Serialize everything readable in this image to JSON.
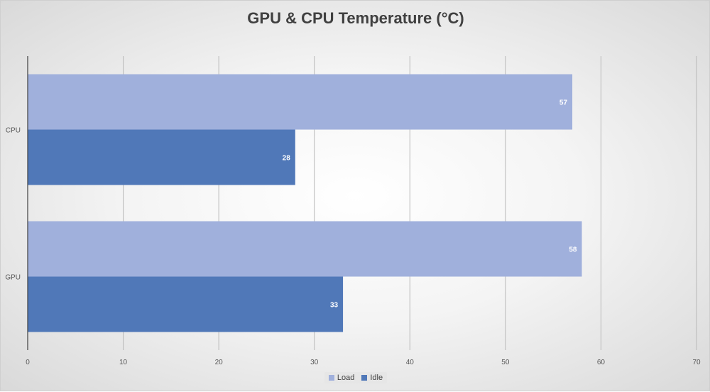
{
  "chart_data": {
    "type": "bar",
    "orientation": "horizontal",
    "title": "GPU & CPU Temperature (°C)",
    "categories": [
      "CPU",
      "GPU"
    ],
    "series": [
      {
        "name": "Load",
        "values": [
          57,
          58
        ],
        "color": "#a0b0dc"
      },
      {
        "name": "Idle",
        "values": [
          28,
          33
        ],
        "color": "#5078b8"
      }
    ],
    "xlim": [
      0,
      70
    ],
    "xticks": [
      0,
      10,
      20,
      30,
      40,
      50,
      60,
      70
    ],
    "data_labels": true,
    "grid": true,
    "legend_position": "bottom"
  }
}
